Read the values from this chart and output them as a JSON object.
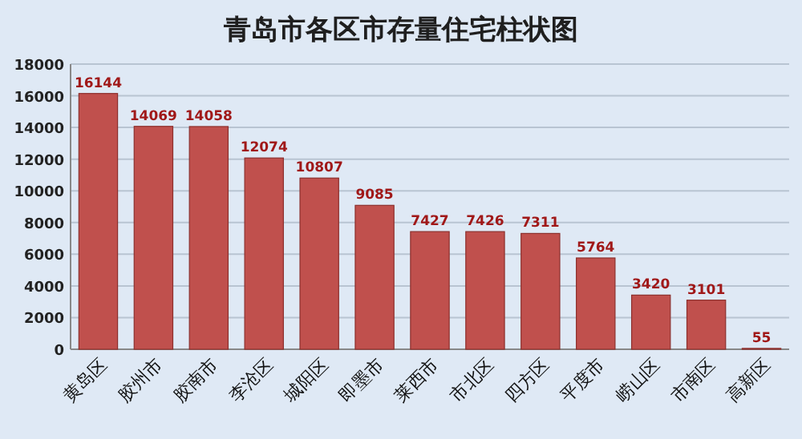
{
  "chart_data": {
    "type": "bar",
    "title": "青岛市各区市存量住宅柱状图",
    "categories": [
      "黄岛区",
      "胶州市",
      "胶南市",
      "李沧区",
      "城阳区",
      "即墨市",
      "莱西市",
      "市北区",
      "四方区",
      "平度市",
      "崂山区",
      "市南区",
      "高新区"
    ],
    "values": [
      16144,
      14069,
      14058,
      12074,
      10807,
      9085,
      7427,
      7426,
      7311,
      5764,
      3420,
      3101,
      55
    ],
    "color": "#c0504d",
    "ylim": [
      0,
      18000
    ],
    "yticks": [
      0,
      2000,
      4000,
      6000,
      8000,
      10000,
      12000,
      14000,
      16000,
      18000
    ],
    "grid": "y",
    "data_labels": true
  }
}
